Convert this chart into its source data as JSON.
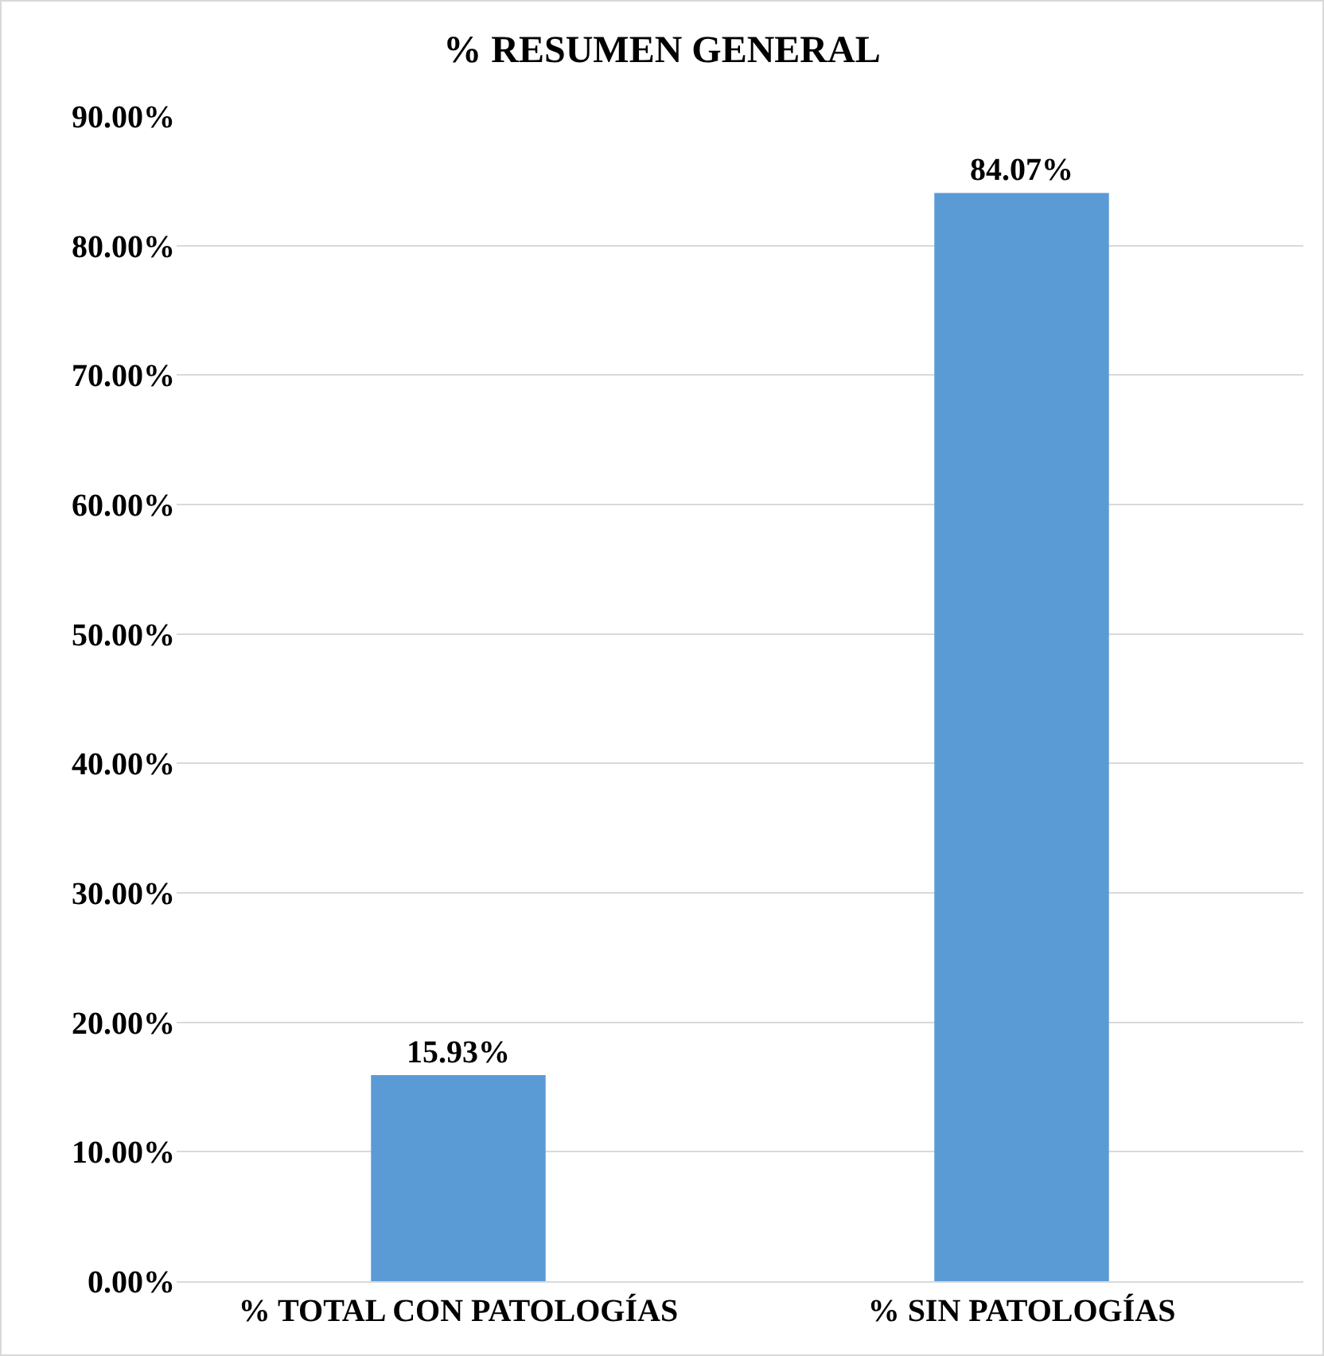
{
  "chart_data": {
    "type": "bar",
    "title": "% RESUMEN GENERAL",
    "categories": [
      "% TOTAL CON PATOLOGÍAS",
      "% SIN PATOLOGÍAS"
    ],
    "values": [
      15.93,
      84.07
    ],
    "value_labels": [
      "15.93%",
      "84.07%"
    ],
    "color": "#5b9bd5",
    "ylim": [
      0,
      90
    ],
    "yticks": [
      {
        "value": 0,
        "label": "0.00%"
      },
      {
        "value": 10,
        "label": "10.00%"
      },
      {
        "value": 20,
        "label": "20.00%"
      },
      {
        "value": 30,
        "label": "30.00%"
      },
      {
        "value": 40,
        "label": "40.00%"
      },
      {
        "value": 50,
        "label": "50.00%"
      },
      {
        "value": 60,
        "label": "60.00%"
      },
      {
        "value": 70,
        "label": "70.00%"
      },
      {
        "value": 80,
        "label": "80.00%"
      },
      {
        "value": 90,
        "label": "90.00%"
      }
    ],
    "grid": "y"
  }
}
